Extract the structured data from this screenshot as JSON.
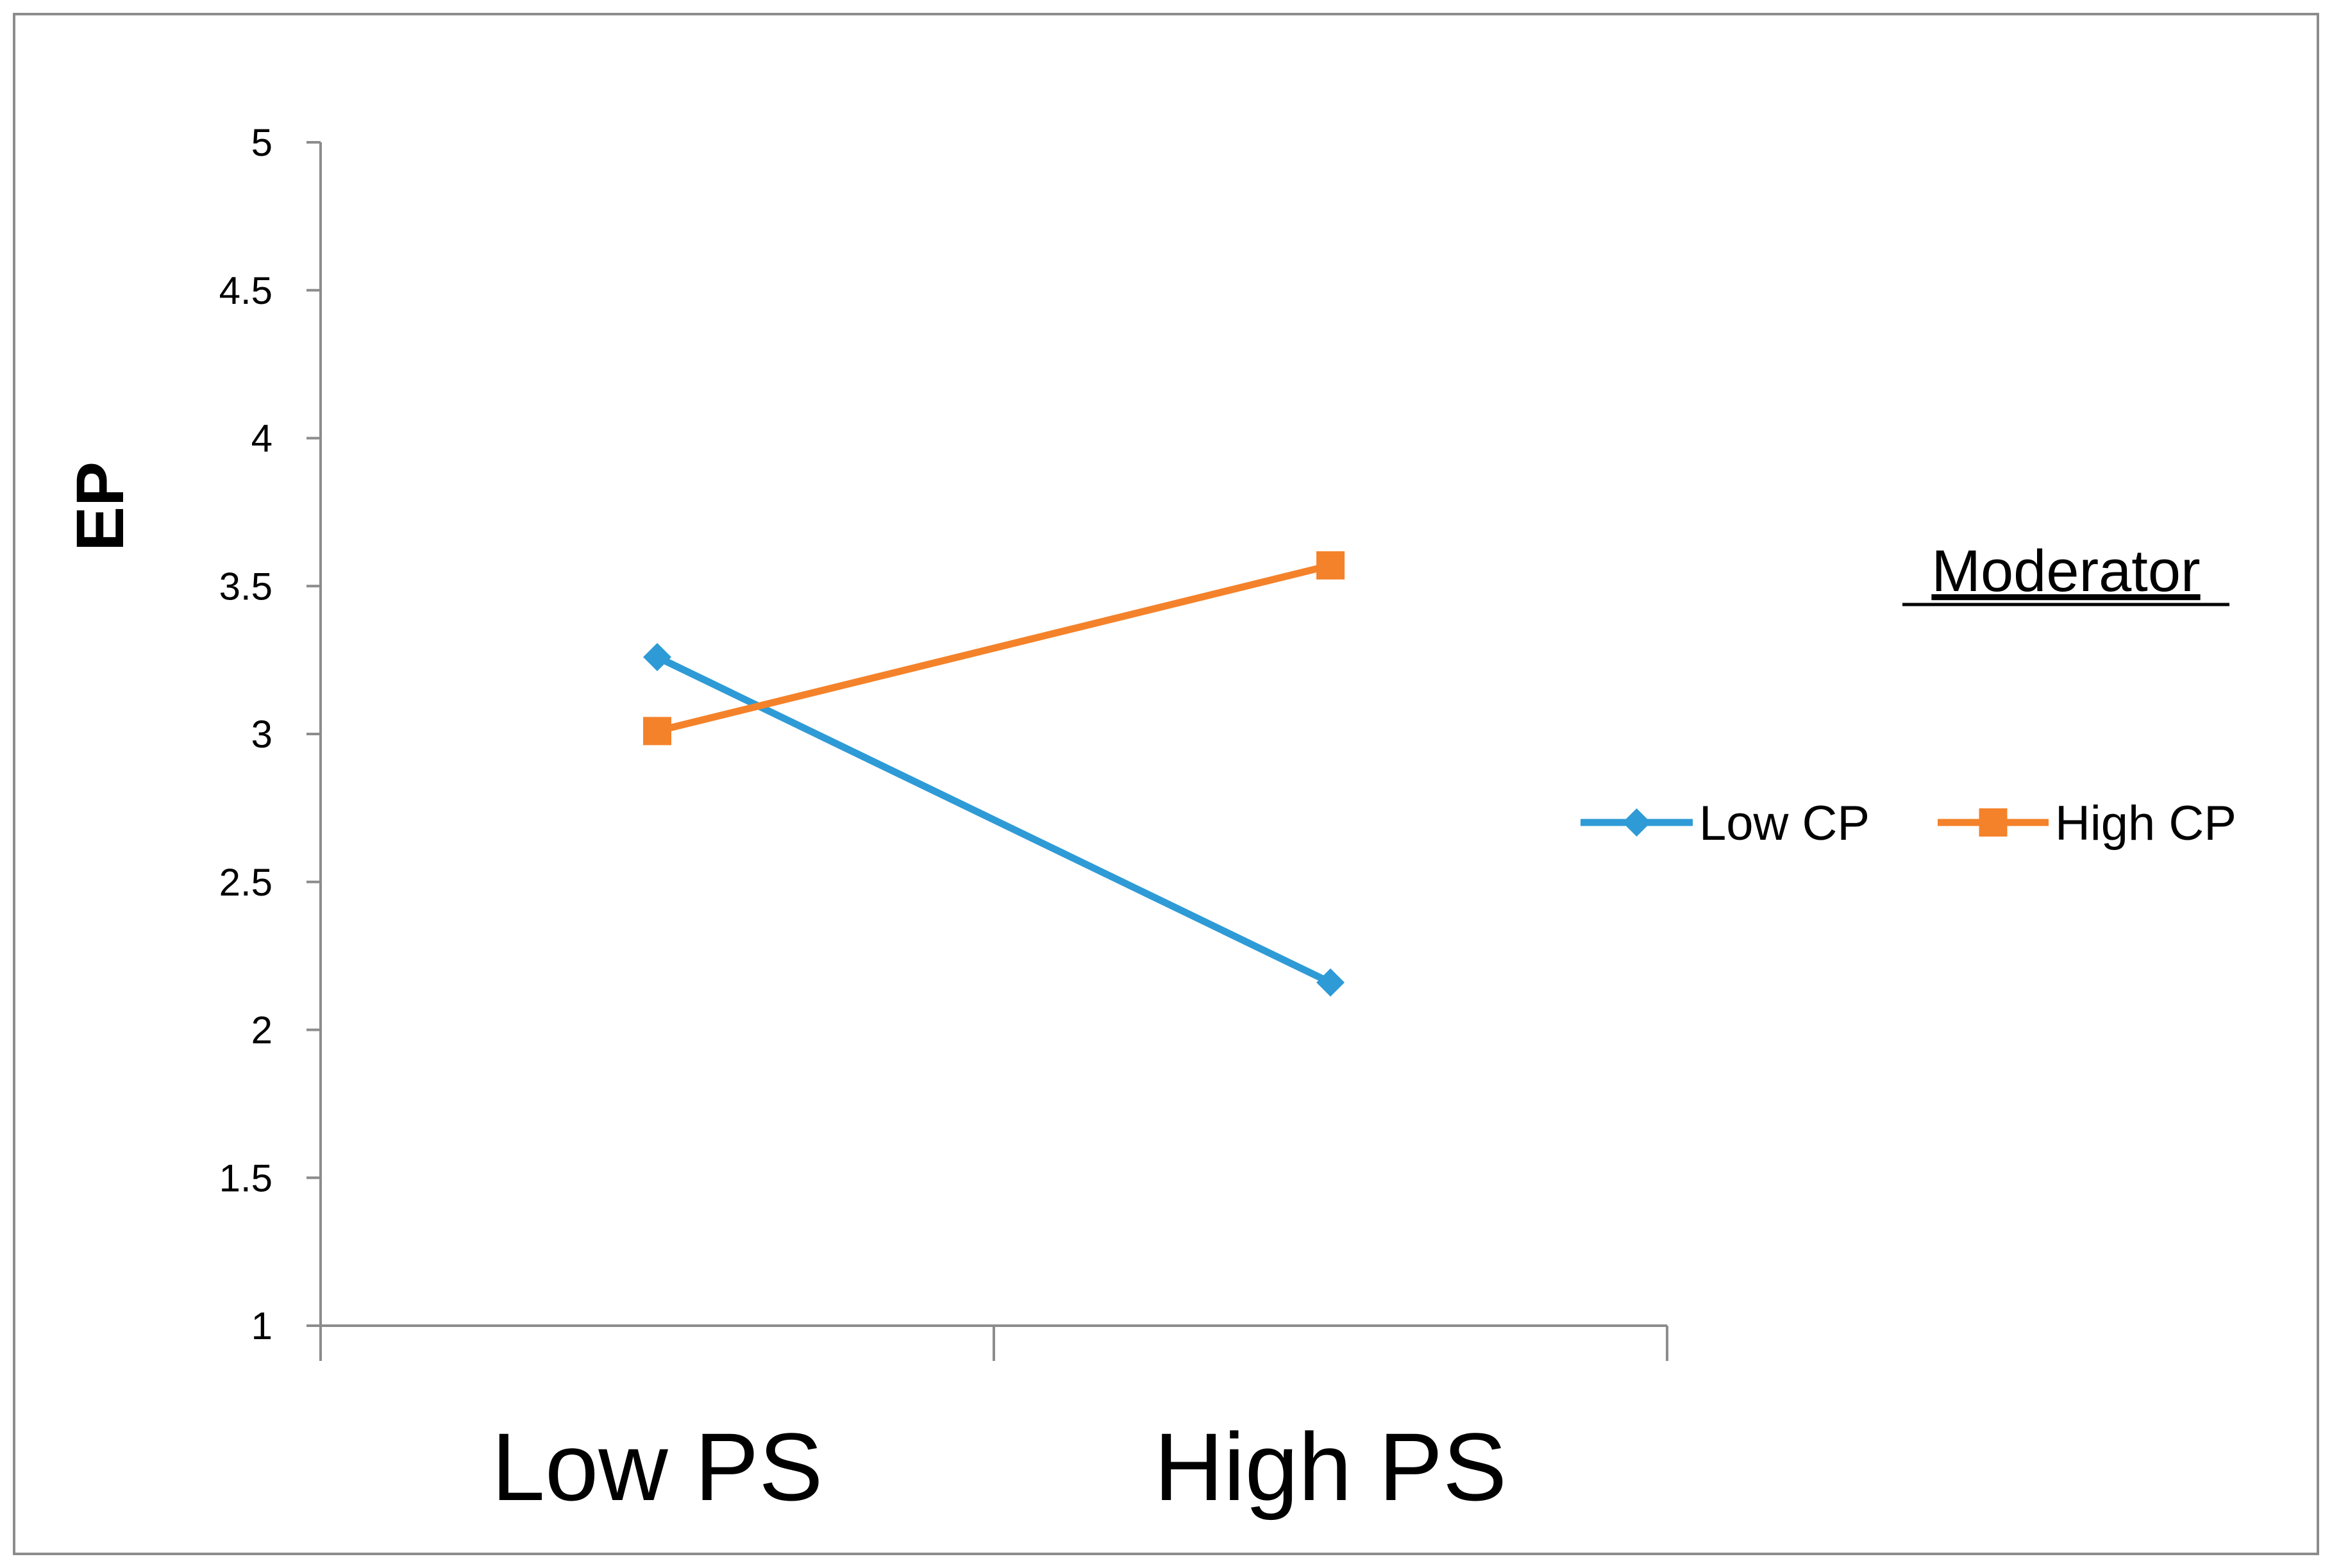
{
  "chart_data": {
    "type": "line",
    "title": "",
    "xlabel": "",
    "ylabel": "EP",
    "categories": [
      "Low PS",
      "High PS"
    ],
    "ylim": [
      1,
      5
    ],
    "yticks": [
      1,
      1.5,
      2,
      2.5,
      3,
      3.5,
      4,
      4.5,
      5
    ],
    "ytick_labels": [
      "1",
      "1.5",
      "2",
      "2.5",
      "3",
      "3.5",
      "4",
      "4.5",
      "5"
    ],
    "grid": false,
    "legend_title": "Moderator",
    "legend_position": "right",
    "series": [
      {
        "name": "Low CP",
        "values": [
          3.26,
          2.16
        ],
        "color": "#2E9BD6",
        "marker": "diamond"
      },
      {
        "name": "High CP",
        "values": [
          3.01,
          3.57
        ],
        "color": "#F4822A",
        "marker": "square"
      }
    ]
  }
}
